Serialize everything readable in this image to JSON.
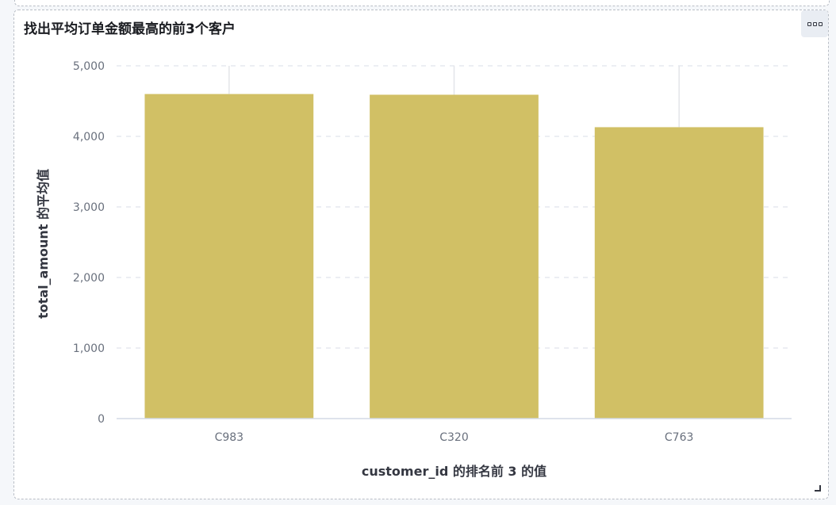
{
  "panel": {
    "title": "找出平均订单金额最高的前3个客户"
  },
  "icons": {
    "menu": "panel-options-icon",
    "resize": "resize-handle-icon"
  },
  "chart_data": {
    "type": "bar",
    "categories": [
      "C983",
      "C320",
      "C763"
    ],
    "values": [
      4600,
      4590,
      4130
    ],
    "errors_upper": [
      5000,
      5000,
      5000
    ],
    "xlabel": "customer_id 的排名前 3 的值",
    "ylabel": "total_amount 的平均值",
    "ylim": [
      0,
      5000
    ],
    "yticks": [
      0,
      1000,
      2000,
      3000,
      4000,
      5000
    ],
    "ytick_labels": [
      "0",
      "1,000",
      "2,000",
      "3,000",
      "4,000",
      "5,000"
    ],
    "grid": true,
    "bar_color": "#d1c065",
    "legend": "none"
  }
}
